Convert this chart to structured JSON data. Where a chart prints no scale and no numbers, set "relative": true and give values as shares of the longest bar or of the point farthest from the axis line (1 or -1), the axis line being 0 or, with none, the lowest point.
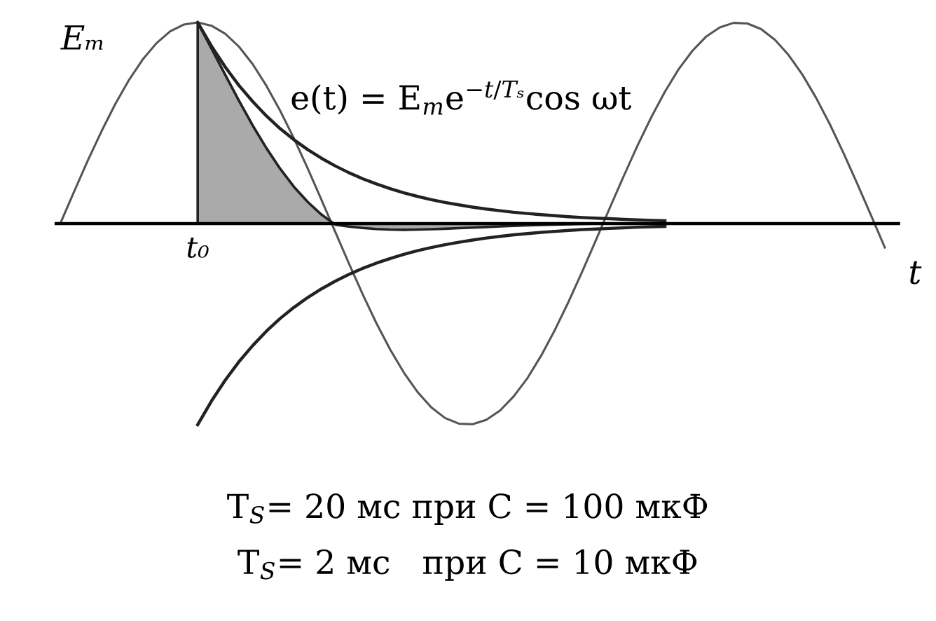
{
  "chart_data": {
    "type": "line",
    "relative": true,
    "xlabel": "t",
    "categories": [
      null,
      null,
      null,
      null,
      null,
      null,
      null,
      null,
      null,
      null,
      null,
      null,
      null,
      null,
      null,
      null,
      null,
      null,
      null,
      null,
      null,
      null,
      null,
      null,
      null,
      null,
      null,
      null,
      null,
      null,
      null,
      null,
      null,
      null,
      null,
      null,
      null,
      null,
      null,
      null,
      null,
      null,
      null,
      null,
      null,
      null,
      null,
      null,
      null,
      null,
      null,
      null,
      null,
      null,
      null,
      null,
      null,
      null,
      null,
      null,
      null
    ],
    "series": [
      {
        "color": "#555555",
        "values": [
          0,
          0.158,
          0.313,
          0.459,
          0.594,
          0.714,
          0.816,
          0.897,
          0.956,
          0.99,
          1.0,
          0.984,
          0.944,
          0.88,
          0.793,
          0.685,
          0.561,
          0.424,
          0.275,
          0.119,
          -0.04,
          -0.198,
          -0.351,
          -0.495,
          -0.626,
          -0.741,
          -0.838,
          -0.914,
          -0.967,
          -0.995,
          -0.998,
          -0.976,
          -0.93,
          -0.859,
          -0.768,
          -0.656,
          -0.528,
          -0.387,
          -0.236,
          -0.079,
          0.08,
          0.236,
          0.387,
          0.528,
          0.656,
          0.768,
          0.859,
          0.93,
          0.976,
          0.998,
          0.995,
          0.967,
          0.914,
          0.838,
          0.741,
          0.625,
          0.494,
          0.35,
          0.197,
          0.04,
          -0.119
        ]
      },
      {
        "color": "#222222",
        "values": [
          null,
          null,
          null,
          null,
          null,
          null,
          null,
          null,
          null,
          null,
          1.0,
          0.883,
          0.779,
          0.687,
          0.607,
          0.535,
          0.472,
          0.417,
          0.368,
          0.325,
          0.287,
          0.253,
          0.223,
          0.197,
          0.174,
          0.153,
          0.135,
          0.119,
          0.105,
          0.093,
          0.082,
          0.072,
          0.064,
          0.056,
          0.05,
          0.044,
          0.039,
          0.034,
          0.03,
          0.027,
          0.024,
          0.021,
          0.018,
          0.016,
          0.014,
          null,
          null,
          null,
          null,
          null,
          null,
          null,
          null,
          null,
          null,
          null,
          null,
          null,
          null,
          null,
          null
        ]
      },
      {
        "color": "#222222",
        "values": [
          null,
          null,
          null,
          null,
          null,
          null,
          null,
          null,
          null,
          null,
          -1.0,
          -0.883,
          -0.779,
          -0.687,
          -0.607,
          -0.535,
          -0.472,
          -0.417,
          -0.368,
          -0.325,
          -0.287,
          -0.253,
          -0.223,
          -0.197,
          -0.174,
          -0.153,
          -0.135,
          -0.119,
          -0.105,
          -0.093,
          -0.082,
          -0.072,
          -0.064,
          -0.056,
          -0.05,
          -0.044,
          -0.039,
          -0.034,
          -0.03,
          -0.027,
          -0.024,
          -0.021,
          -0.018,
          -0.016,
          -0.014,
          null,
          null,
          null,
          null,
          null,
          null,
          null,
          null,
          null,
          null,
          null,
          null,
          null,
          null,
          null,
          null
        ]
      },
      {
        "type": "area",
        "color": "#aaaaaa",
        "values": [
          null,
          null,
          null,
          null,
          null,
          null,
          null,
          null,
          null,
          null,
          1.0,
          0.871,
          0.74,
          0.611,
          0.488,
          0.375,
          0.273,
          0.183,
          0.108,
          0.045,
          -0.005,
          -0.015,
          -0.022,
          -0.027,
          -0.03,
          -0.031,
          -0.03,
          -0.028,
          -0.026,
          -0.023,
          -0.02,
          -0.017,
          -0.014,
          -0.011,
          -0.009,
          -0.007,
          -0.005,
          -0.003,
          -0.002,
          -0.001,
          0,
          0,
          0,
          0,
          0,
          null,
          null,
          null,
          null,
          null,
          null,
          null,
          null,
          null,
          null,
          null,
          null,
          null,
          null,
          null,
          null
        ]
      }
    ],
    "annotations": [
      "t₀",
      "Eₘ",
      "e(t) = E$_{m}$e$^{−t/Tₛ}$cos ωt",
      "T$_{S}$= 20 мс при C = 100 мкФ",
      "T$_{S}$= 2 мс   при C = 10 мкФ"
    ]
  }
}
